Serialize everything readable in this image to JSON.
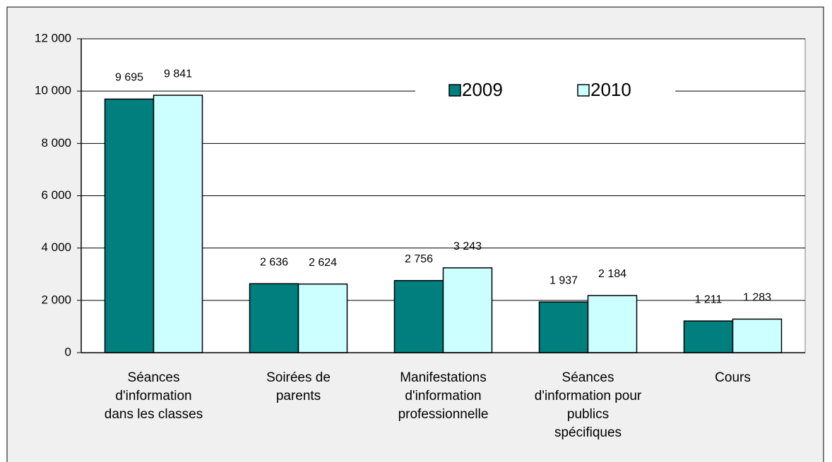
{
  "chart_data": {
    "type": "bar",
    "categories": [
      "Séances\nd'information\ndans les classes",
      "Soirées de\nparents",
      "Manifestations\nd'information\nprofessionnelle",
      "Séances\nd'information pour\npublics\nspécifiques",
      "Cours"
    ],
    "series": [
      {
        "name": "2009",
        "color": "#007f7f",
        "values": [
          9695,
          2636,
          2756,
          1937,
          1211
        ],
        "value_labels": [
          "9 695",
          "2 636",
          "2 756",
          "1 937",
          "1 211"
        ]
      },
      {
        "name": "2010",
        "color": "#ccffff",
        "values": [
          9841,
          2624,
          3243,
          2184,
          1283
        ],
        "value_labels": [
          "9 841",
          "2 624",
          "3 243",
          "2 184",
          "1 283"
        ]
      }
    ],
    "ylim": [
      0,
      12000
    ],
    "yticks": [
      0,
      {
        "value": 2000,
        "label": "2 000"
      },
      {
        "value": 4000,
        "label": "4 000"
      },
      {
        "value": 6000,
        "label": "6 000"
      },
      {
        "value": 8000,
        "label": "8 000"
      },
      {
        "value": 10000,
        "label": "10 000"
      },
      {
        "value": 12000,
        "label": "12 000"
      }
    ],
    "grid": true,
    "legend": "top"
  }
}
